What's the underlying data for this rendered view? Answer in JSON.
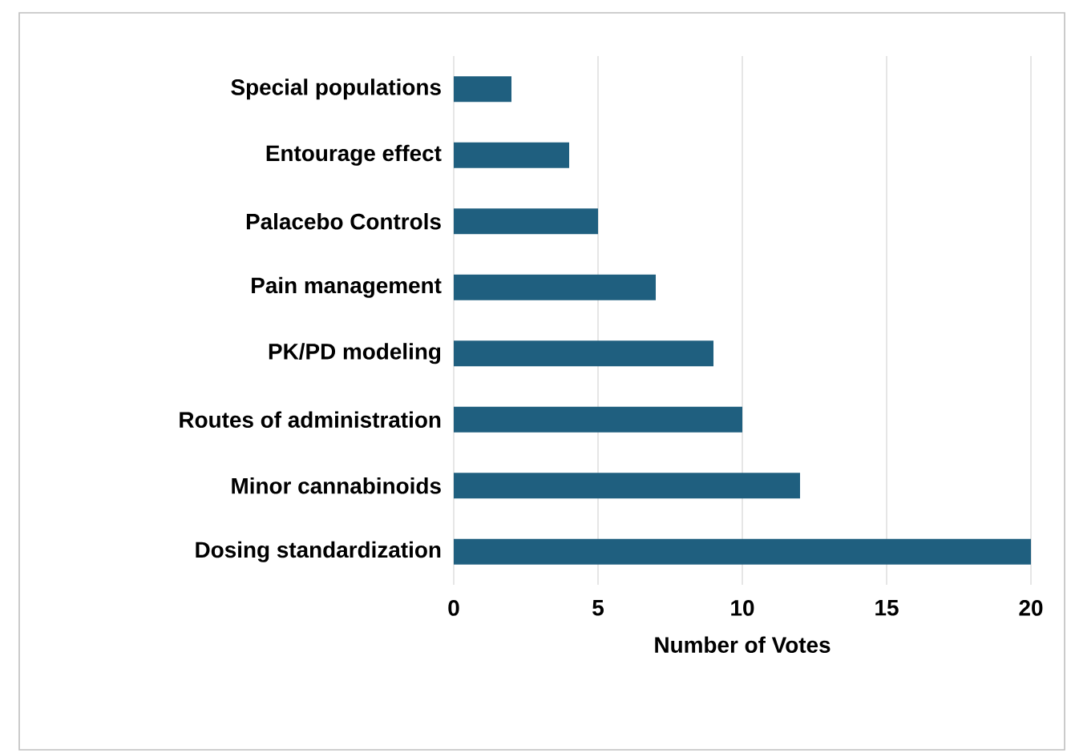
{
  "chart_data": {
    "type": "bar",
    "orientation": "horizontal",
    "xlabel": "Number of Votes",
    "categories": [
      "Special populations",
      "Entourage effect",
      "Palacebo Controls",
      "Pain management",
      "PK/PD modeling",
      "Routes of administration",
      "Minor cannabinoids",
      "Dosing standardization"
    ],
    "values": [
      2,
      4,
      5,
      7,
      9,
      10,
      12,
      20
    ],
    "color": "#1f5f7f",
    "xlim": [
      0,
      20
    ],
    "xticks": [
      0,
      5,
      10,
      15,
      20
    ],
    "grid": "x"
  }
}
